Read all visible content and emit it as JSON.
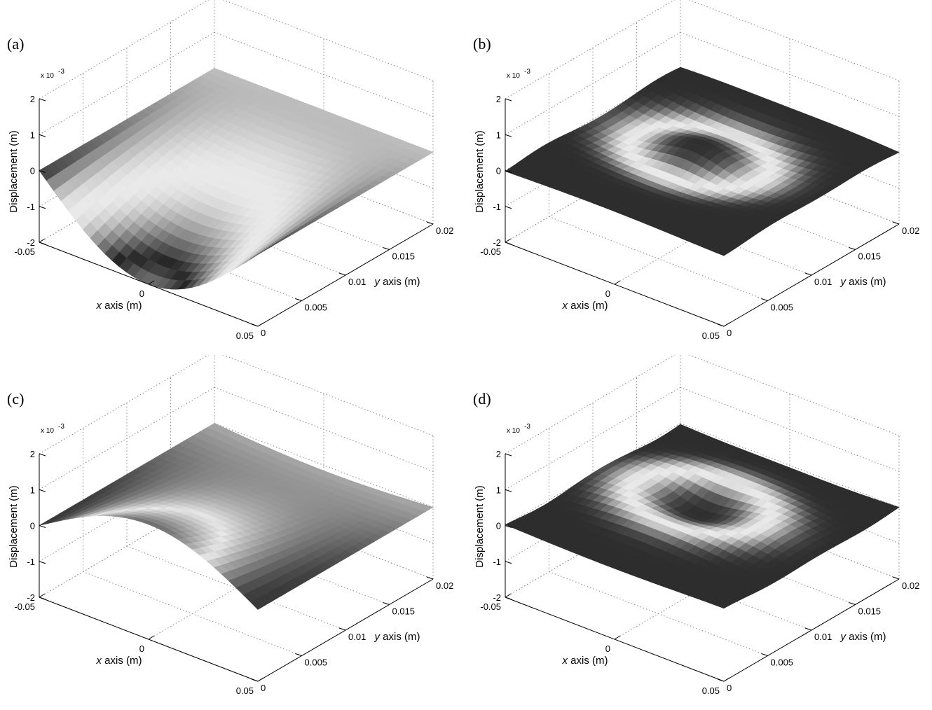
{
  "chart_data": [
    {
      "type": "surface",
      "panel_label": "(a)",
      "zlabel": "Displacement (m)",
      "xlabel_var": "x",
      "xlabel_rest": " axis (m)",
      "ylabel_var": "y",
      "ylabel_rest": " axis (m)",
      "z_multiplier": "x 10",
      "z_multiplier_exp": "-3",
      "xticks": [
        "-0.05",
        "0",
        "0.05"
      ],
      "yticks": [
        "0",
        "0.005",
        "0.01",
        "0.015",
        "0.02"
      ],
      "zticks": [
        "-2",
        "-1",
        "0",
        "1",
        "2"
      ],
      "xlim": [
        -0.05,
        0.05
      ],
      "ylim": [
        0,
        0.02
      ],
      "zlim": [
        -2,
        2
      ],
      "grid": true,
      "colormap": "gray",
      "surface": {
        "mode": 1,
        "peak_z": -2.0,
        "description": "half-sine bending along x, max downward at near edge"
      }
    },
    {
      "type": "surface",
      "panel_label": "(b)",
      "zlabel": "Displacement (m)",
      "xlabel_var": "x",
      "xlabel_rest": " axis (m)",
      "ylabel_var": "y",
      "ylabel_rest": " axis (m)",
      "z_multiplier": "x 10",
      "z_multiplier_exp": "-3",
      "xticks": [
        "-0.05",
        "0",
        "0.05"
      ],
      "yticks": [
        "0",
        "0.005",
        "0.01",
        "0.015",
        "0.02"
      ],
      "zticks": [
        "-2",
        "-1",
        "0",
        "1",
        "2"
      ],
      "xlim": [
        -0.05,
        0.05
      ],
      "ylim": [
        0,
        0.02
      ],
      "zlim": [
        -2,
        2
      ],
      "grid": true,
      "colormap": "gray",
      "surface": {
        "mode": 2,
        "peak_z": 0.3,
        "description": "nearly flat plate with ring pattern"
      }
    },
    {
      "type": "surface",
      "panel_label": "(c)",
      "zlabel": "Displacement (m)",
      "xlabel_var": "x",
      "xlabel_rest": " axis (m)",
      "ylabel_var": "y",
      "ylabel_rest": " axis (m)",
      "z_multiplier": "x 10",
      "z_multiplier_exp": "-3",
      "xticks": [
        "-0.05",
        "0",
        "0.05"
      ],
      "yticks": [
        "0",
        "0.005",
        "0.01",
        "0.015",
        "0.02"
      ],
      "zticks": [
        "-2",
        "-1",
        "0",
        "1",
        "2"
      ],
      "xlim": [
        -0.05,
        0.05
      ],
      "ylim": [
        0,
        0.02
      ],
      "zlim": [
        -2,
        2
      ],
      "grid": true,
      "colormap": "gray",
      "surface": {
        "mode": 3,
        "peak_z": 1.2,
        "description": "upward bending along x near the near edge"
      }
    },
    {
      "type": "surface",
      "panel_label": "(d)",
      "zlabel": "Displacement (m)",
      "xlabel_var": "x",
      "xlabel_rest": " axis (m)",
      "ylabel_var": "y",
      "ylabel_rest": " axis (m)",
      "z_multiplier": "x 10",
      "z_multiplier_exp": "-3",
      "xticks": [
        "-0.05",
        "0",
        "0.05"
      ],
      "yticks": [
        "0",
        "0.005",
        "0.01",
        "0.015",
        "0.02"
      ],
      "zticks": [
        "-2",
        "-1",
        "0",
        "1",
        "2"
      ],
      "xlim": [
        -0.05,
        0.05
      ],
      "ylim": [
        0,
        0.02
      ],
      "zlim": [
        -2,
        2
      ],
      "grid": true,
      "colormap": "gray",
      "surface": {
        "mode": 4,
        "peak_z": -0.3,
        "description": "nearly flat plate with ring pattern, dark center"
      }
    }
  ]
}
